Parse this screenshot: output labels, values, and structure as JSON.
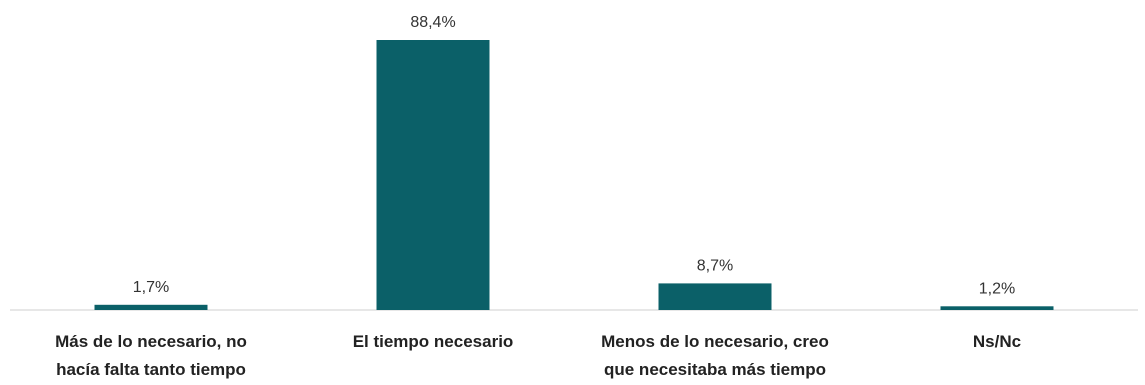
{
  "colors": {
    "bar": "#0b6068",
    "axis": "#cfcfcf"
  },
  "chart_data": {
    "type": "bar",
    "categories": [
      [
        "Más de lo necesario, no",
        "hacía falta tanto tiempo"
      ],
      [
        "El tiempo necesario"
      ],
      [
        "Menos de lo necesario, creo",
        "que necesitaba más tiempo"
      ],
      [
        "Ns/Nc"
      ]
    ],
    "values": [
      1.7,
      88.4,
      8.7,
      1.2
    ],
    "value_labels": [
      "1,7%",
      "88,4%",
      "8,7%",
      "1,2%"
    ],
    "ylim": [
      0,
      100
    ],
    "grid": false,
    "legend": "none",
    "title": "",
    "xlabel": "",
    "ylabel": ""
  }
}
